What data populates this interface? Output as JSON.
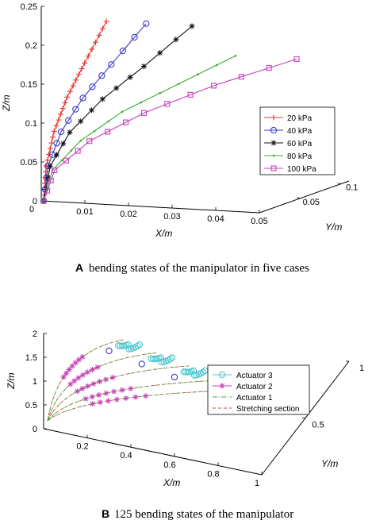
{
  "chart_data": [
    {
      "type": "line",
      "panel": "A",
      "caption_letter": "A",
      "caption_text": "bending states of the manipulator in five cases",
      "xlabel": "X/m",
      "ylabel": "Y/m",
      "zlabel": "Z/m",
      "xlim": [
        0,
        0.05
      ],
      "ylim": [
        0,
        0.1
      ],
      "zlim": [
        0,
        0.25
      ],
      "x_ticks": [
        "0",
        "0.01",
        "0.02",
        "0.03",
        "0.04",
        "0.05"
      ],
      "y_ticks": [
        "0.05",
        "0.1"
      ],
      "z_ticks": [
        "0",
        "0.05",
        "0.1",
        "0.15",
        "0.2",
        "0.25"
      ],
      "legend_position": "right",
      "series": [
        {
          "name": "20 kPa",
          "color": "#e8332a",
          "marker": "plus",
          "x": [
            0.0,
            0.0006,
            0.0024,
            0.0054,
            0.0094,
            0.0144
          ],
          "z": [
            0.0,
            0.045,
            0.09,
            0.135,
            0.18,
            0.235
          ]
        },
        {
          "name": "40 kPa",
          "color": "#3a3ac8",
          "marker": "circle",
          "x": [
            0.0,
            0.001,
            0.004,
            0.009,
            0.0155,
            0.0235
          ],
          "z": [
            0.0,
            0.045,
            0.09,
            0.135,
            0.18,
            0.235
          ]
        },
        {
          "name": "60 kPa",
          "color": "#111111",
          "marker": "asterisk",
          "x": [
            0.0,
            0.0015,
            0.006,
            0.0135,
            0.023,
            0.034
          ],
          "z": [
            0.0,
            0.045,
            0.09,
            0.135,
            0.18,
            0.235
          ]
        },
        {
          "name": "80 kPa",
          "color": "#3aaa35",
          "marker": "dot",
          "x": [
            0.0,
            0.002,
            0.0085,
            0.018,
            0.031,
            0.044
          ],
          "z": [
            0.0,
            0.04,
            0.08,
            0.12,
            0.16,
            0.2
          ]
        },
        {
          "name": "100 kPa",
          "color": "#c73fbf",
          "marker": "square",
          "x": [
            0.0,
            0.0025,
            0.0105,
            0.023,
            0.039,
            0.058
          ],
          "z": [
            0.0,
            0.04,
            0.08,
            0.12,
            0.16,
            0.2
          ]
        }
      ]
    },
    {
      "type": "scatter",
      "panel": "B",
      "caption_letter": "B",
      "caption_text": "125 bending states of the manipulator",
      "xlabel": "X/m",
      "ylabel": "Y/m",
      "zlabel": "Z/m",
      "xlim": [
        0,
        1
      ],
      "ylim": [
        0,
        1
      ],
      "zlim": [
        0,
        2
      ],
      "x_ticks": [
        "0.2",
        "0.4",
        "0.6",
        "0.8",
        "1"
      ],
      "y_ticks": [
        "0.5",
        "1"
      ],
      "z_ticks": [
        "0",
        "0.5",
        "1",
        "1.5",
        "2"
      ],
      "legend_position": "right",
      "series": [
        {
          "name": "Actuator 3",
          "color": "#4cc6d0",
          "marker": "circle"
        },
        {
          "name": "Actuator 2",
          "color": "#c43fb7",
          "marker": "asterisk"
        },
        {
          "name": "Actuator 1",
          "color": "#3aaa35",
          "marker": "dashdot"
        },
        {
          "name": "Stretching section",
          "color": "#e0403a",
          "marker": "dashed"
        }
      ],
      "curve_tips_x": [
        0.22,
        0.37,
        0.52,
        0.7,
        0.85
      ],
      "curve_tips_z": [
        1.88,
        1.75,
        1.62,
        1.5,
        1.45
      ]
    }
  ]
}
